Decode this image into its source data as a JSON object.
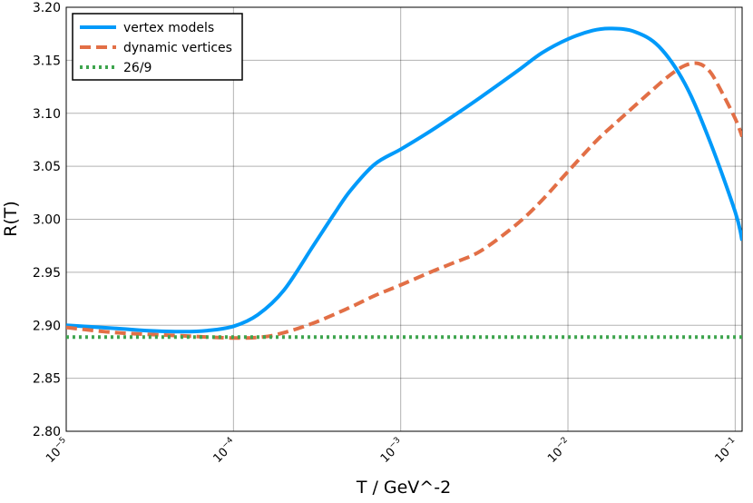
{
  "chart_data": {
    "type": "line",
    "xlabel": "T / GeV^-2",
    "ylabel": "R(T)",
    "xscale": "log",
    "xlim": [
      1e-05,
      0.11
    ],
    "ylim": [
      2.8,
      3.2
    ],
    "x_ticks": [
      {
        "base": "10",
        "exp": "−5",
        "value": 1e-05
      },
      {
        "base": "10",
        "exp": "−4",
        "value": 0.0001
      },
      {
        "base": "10",
        "exp": "−3",
        "value": 0.001
      },
      {
        "base": "10",
        "exp": "−2",
        "value": 0.01
      },
      {
        "base": "10",
        "exp": "−1",
        "value": 0.1
      }
    ],
    "y_ticks": [
      "2.80",
      "2.85",
      "2.90",
      "2.95",
      "3.00",
      "3.05",
      "3.10",
      "3.15",
      "3.20"
    ],
    "grid": true,
    "legend_position": "top-left",
    "series": [
      {
        "name": "vertex models",
        "color": "#009AFA",
        "style": "solid",
        "x": [
          1e-05,
          2e-05,
          3e-05,
          5e-05,
          7e-05,
          0.0001,
          0.00014,
          0.0002,
          0.0003,
          0.0004,
          0.0005,
          0.0007,
          0.001,
          0.0014,
          0.002,
          0.003,
          0.005,
          0.007,
          0.01,
          0.014,
          0.018,
          0.025,
          0.035,
          0.05,
          0.07,
          0.1,
          0.11
        ],
        "y": [
          2.9,
          2.897,
          2.895,
          2.894,
          2.895,
          2.899,
          2.91,
          2.933,
          2.975,
          3.005,
          3.027,
          3.052,
          3.066,
          3.08,
          3.096,
          3.115,
          3.14,
          3.157,
          3.17,
          3.178,
          3.18,
          3.177,
          3.163,
          3.128,
          3.075,
          3.007,
          2.98
        ]
      },
      {
        "name": "dynamic vertices",
        "color": "#E26F46",
        "style": "dashed",
        "x": [
          1e-05,
          2e-05,
          5e-05,
          0.0001,
          0.00015,
          0.0002,
          0.0003,
          0.0005,
          0.0007,
          0.001,
          0.0015,
          0.002,
          0.003,
          0.005,
          0.007,
          0.01,
          0.015,
          0.02,
          0.03,
          0.04,
          0.05,
          0.06,
          0.07,
          0.08,
          0.1,
          0.11
        ],
        "y": [
          2.898,
          2.893,
          2.89,
          2.888,
          2.889,
          2.893,
          2.902,
          2.917,
          2.928,
          2.938,
          2.95,
          2.958,
          2.97,
          2.996,
          3.018,
          3.045,
          3.075,
          3.093,
          3.118,
          3.135,
          3.145,
          3.147,
          3.14,
          3.125,
          3.095,
          3.078
        ]
      },
      {
        "name": "26/9",
        "color": "#3DA44D",
        "style": "dotted",
        "x": [
          1e-05,
          0.11
        ],
        "y": [
          2.8889,
          2.8889
        ]
      }
    ]
  }
}
